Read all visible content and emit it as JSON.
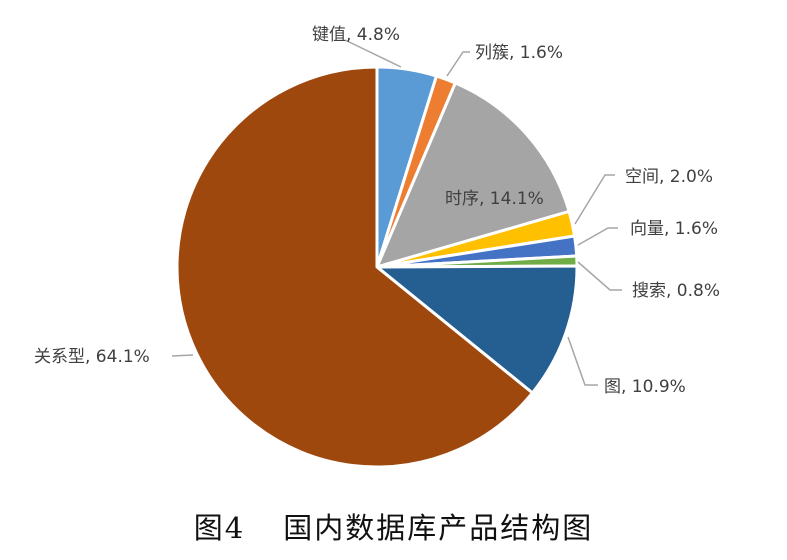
{
  "chart_data": {
    "type": "pie",
    "title": "国内数据库产品结构图",
    "figure_number": "图4",
    "start_angle_deg": 0,
    "direction": "clockwise",
    "categories": [
      "键值",
      "列簇",
      "时序",
      "空间",
      "向量",
      "搜索",
      "图",
      "关系型"
    ],
    "values": [
      4.8,
      1.6,
      14.1,
      2.0,
      1.6,
      0.8,
      10.9,
      64.1
    ],
    "unit": "%",
    "colors": [
      "#5B9BD5",
      "#ED7D31",
      "#A5A5A5",
      "#FFC000",
      "#4472C4",
      "#70AD47",
      "#255E91",
      "#9E480E"
    ],
    "data_labels": [
      "键值, 4.8%",
      "列簇, 1.6%",
      "时序, 14.1%",
      "空间, 2.0%",
      "向量, 1.6%",
      "搜索, 0.8%",
      "图, 10.9%",
      "关系型, 64.1%"
    ],
    "legend": "none (data labels with leader lines)"
  },
  "caption": {
    "number": "图4",
    "text": "国内数据库产品结构图"
  }
}
